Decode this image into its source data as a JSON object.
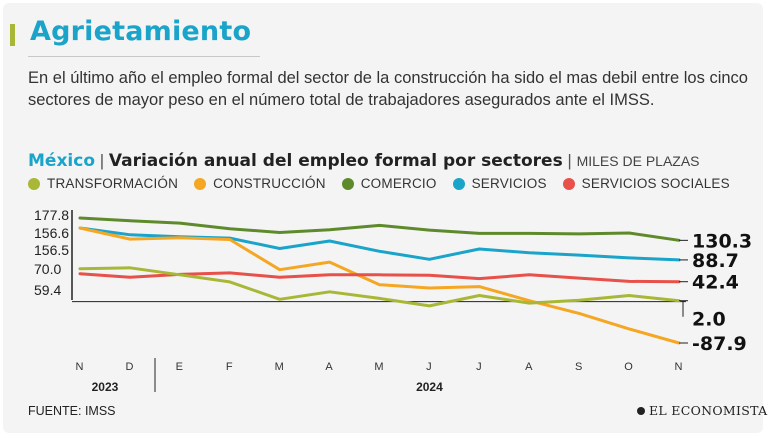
{
  "header": {
    "title": "Agrietamiento",
    "description": "En el último año el empleo formal del sector de la construcción ha sido el mas debil entre los cinco sectores de mayor peso en el número total de trabajadores asegurados ante el IMSS."
  },
  "chart_header": {
    "country": "México",
    "separator": "|",
    "title": "Variación anual del empleo formal por sectores",
    "units": "MILES DE PLAZAS"
  },
  "legend": [
    {
      "label": "TRANSFORMACIÓN",
      "color": "#a9b736"
    },
    {
      "label": "CONSTRUCCIÓN",
      "color": "#f5a623"
    },
    {
      "label": "COMERCIO",
      "color": "#5f8a2c"
    },
    {
      "label": "SERVICIOS",
      "color": "#1aa4c9"
    },
    {
      "label": "SERVICIOS SOCIALES",
      "color": "#e8504a"
    }
  ],
  "chart_data": {
    "type": "line",
    "title": "Variación anual del empleo formal por sectores",
    "units": "MILES DE PLAZAS",
    "categories": [
      "N",
      "D",
      "E",
      "F",
      "M",
      "A",
      "M",
      "J",
      "J",
      "A",
      "S",
      "O",
      "N"
    ],
    "years": [
      {
        "label": "2023",
        "start": 0,
        "end": 1
      },
      {
        "label": "2024",
        "start": 2,
        "end": 12
      }
    ],
    "y_tick_labels": [
      "177.8",
      "156.6",
      "156.5",
      "70.0",
      "59.4"
    ],
    "ylim": [
      -87.9,
      177.8
    ],
    "zero_line": true,
    "series": [
      {
        "name": "COMERCIO",
        "color": "#5f8a2c",
        "values": [
          177.8,
          172,
          167,
          155,
          147,
          153,
          162,
          152,
          145,
          145,
          144,
          146,
          130.3
        ],
        "end_label": "130.3"
      },
      {
        "name": "SERVICIOS",
        "color": "#1aa4c9",
        "values": [
          156.6,
          142,
          138,
          135,
          113,
          129,
          107,
          90,
          112,
          104,
          99,
          93,
          88.7
        ],
        "end_label": "88.7"
      },
      {
        "name": "CONSTRUCCIÓN",
        "color": "#f5a623",
        "values": [
          156.5,
          133,
          136,
          132,
          68,
          84,
          36,
          29,
          32,
          2,
          -25,
          -58,
          -87.9
        ],
        "end_label": "-87.9"
      },
      {
        "name": "SERVICIOS SOCIALES",
        "color": "#e8504a",
        "values": [
          59.4,
          52,
          58,
          61,
          52,
          57,
          57,
          56,
          49,
          57,
          50,
          43,
          42.4
        ],
        "end_label": "42.4"
      },
      {
        "name": "TRANSFORMACIÓN",
        "color": "#a9b736",
        "values": [
          70.0,
          72,
          57,
          42,
          5,
          21,
          7,
          -9,
          13,
          -3,
          3,
          13,
          2.0
        ],
        "end_label": "2.0"
      }
    ]
  },
  "footer": {
    "source": "FUENTE: IMSS",
    "brand": "EL ECONOMISTA"
  }
}
